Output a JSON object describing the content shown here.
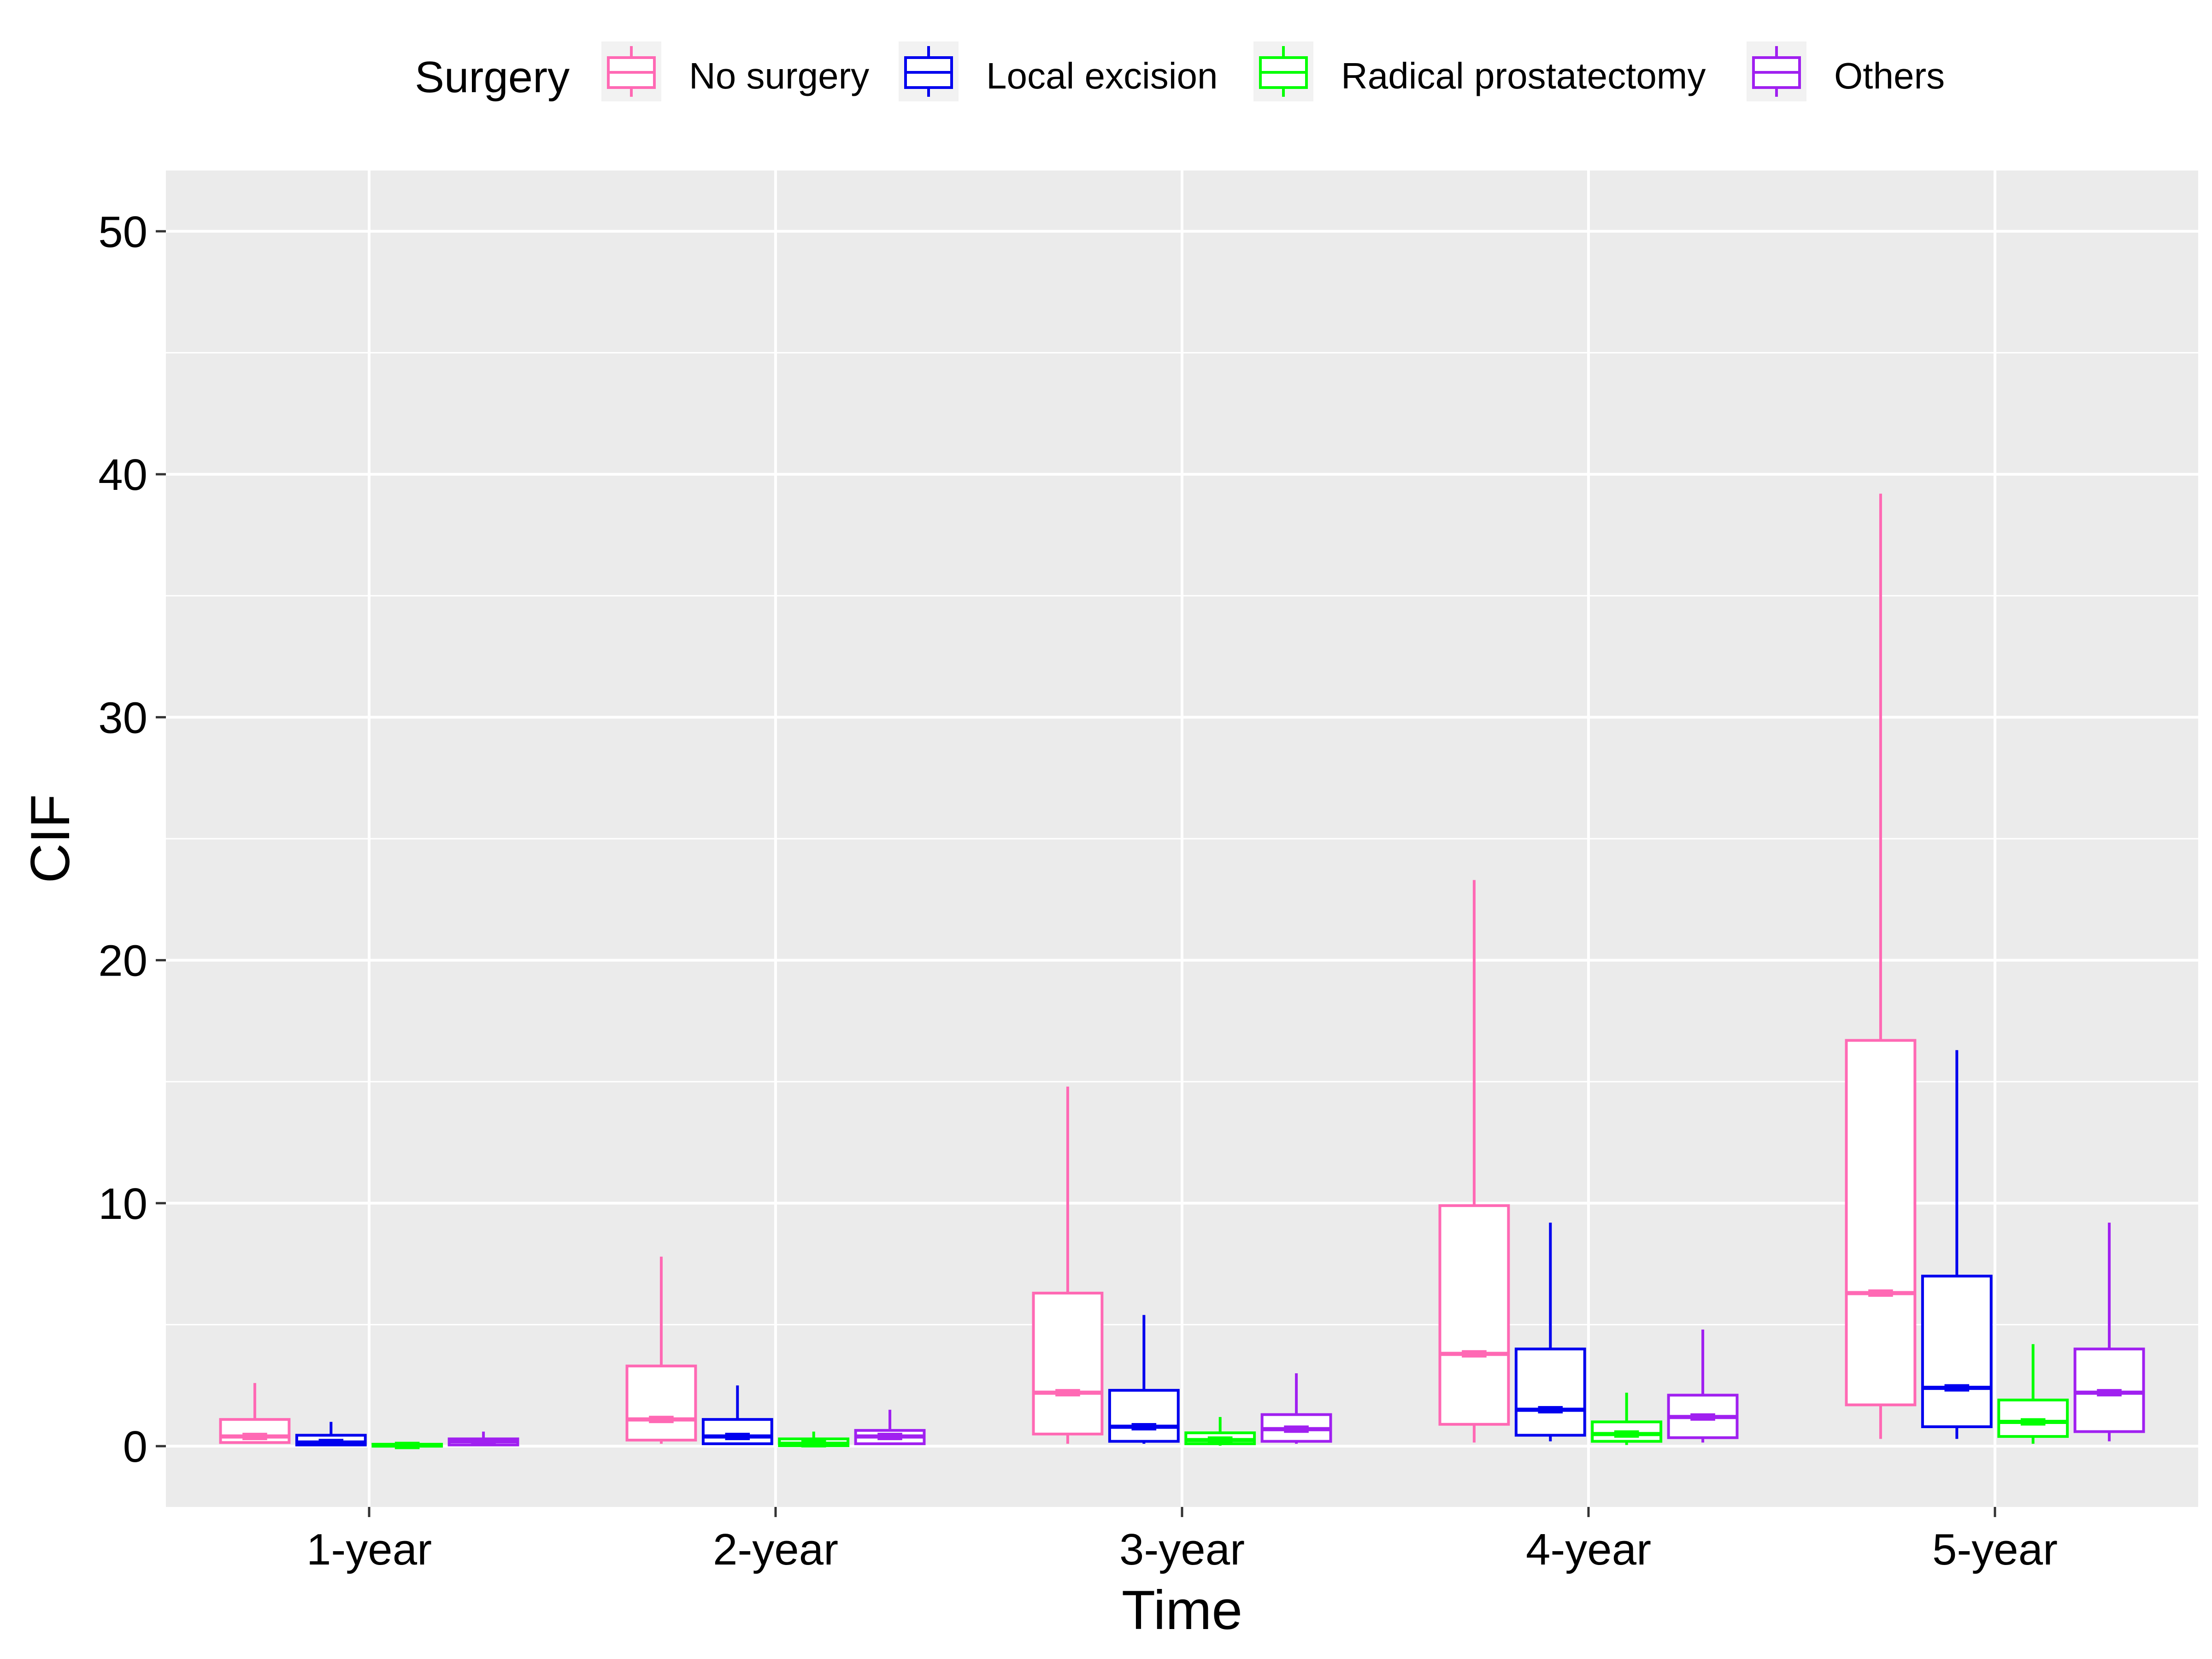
{
  "chart_data": {
    "type": "boxplot",
    "xlabel": "Time",
    "ylabel": "CIF",
    "ylim": [
      -2.5,
      52.5
    ],
    "yticks": [
      0,
      10,
      20,
      30,
      40,
      50
    ],
    "grid": true,
    "legend": {
      "title": "Surgery",
      "position": "top"
    },
    "categories": [
      "1-year",
      "2-year",
      "3-year",
      "4-year",
      "5-year"
    ],
    "series": [
      {
        "name": "No surgery",
        "color": "#FF69B4",
        "boxes": [
          {
            "min": 0.1,
            "q1": 0.15,
            "median": 0.4,
            "q3": 1.1,
            "max": 2.6
          },
          {
            "min": 0.1,
            "q1": 0.25,
            "median": 1.1,
            "q3": 3.3,
            "max": 7.8
          },
          {
            "min": 0.1,
            "q1": 0.5,
            "median": 2.2,
            "q3": 6.3,
            "max": 14.8
          },
          {
            "min": 0.15,
            "q1": 0.9,
            "median": 3.8,
            "q3": 9.9,
            "max": 23.3
          },
          {
            "min": 0.3,
            "q1": 1.7,
            "median": 6.3,
            "q3": 16.7,
            "max": 39.2
          }
        ]
      },
      {
        "name": "Local excision",
        "color": "#0000EE",
        "boxes": [
          {
            "min": 0.02,
            "q1": 0.05,
            "median": 0.15,
            "q3": 0.45,
            "max": 1.0
          },
          {
            "min": 0.05,
            "q1": 0.1,
            "median": 0.4,
            "q3": 1.1,
            "max": 2.5
          },
          {
            "min": 0.1,
            "q1": 0.2,
            "median": 0.8,
            "q3": 2.3,
            "max": 5.4
          },
          {
            "min": 0.2,
            "q1": 0.45,
            "median": 1.5,
            "q3": 4.0,
            "max": 9.2
          },
          {
            "min": 0.3,
            "q1": 0.8,
            "median": 2.4,
            "q3": 7.0,
            "max": 16.3
          }
        ]
      },
      {
        "name": "Radical prostatectomy",
        "color": "#00FF00",
        "boxes": [
          {
            "min": 0.0,
            "q1": 0.0,
            "median": 0.03,
            "q3": 0.08,
            "max": 0.15
          },
          {
            "min": 0.0,
            "q1": 0.02,
            "median": 0.1,
            "q3": 0.3,
            "max": 0.6
          },
          {
            "min": 0.02,
            "q1": 0.1,
            "median": 0.25,
            "q3": 0.55,
            "max": 1.2
          },
          {
            "min": 0.05,
            "q1": 0.2,
            "median": 0.5,
            "q3": 1.0,
            "max": 2.2
          },
          {
            "min": 0.1,
            "q1": 0.4,
            "median": 1.0,
            "q3": 1.9,
            "max": 4.2
          }
        ]
      },
      {
        "name": "Others",
        "color": "#A020F0",
        "boxes": [
          {
            "min": 0.02,
            "q1": 0.05,
            "median": 0.2,
            "q3": 0.3,
            "max": 0.6
          },
          {
            "min": 0.05,
            "q1": 0.1,
            "median": 0.4,
            "q3": 0.65,
            "max": 1.5
          },
          {
            "min": 0.1,
            "q1": 0.2,
            "median": 0.7,
            "q3": 1.3,
            "max": 3.0
          },
          {
            "min": 0.15,
            "q1": 0.35,
            "median": 1.2,
            "q3": 2.1,
            "max": 4.8
          },
          {
            "min": 0.2,
            "q1": 0.6,
            "median": 2.2,
            "q3": 4.0,
            "max": 9.2
          }
        ]
      }
    ]
  }
}
